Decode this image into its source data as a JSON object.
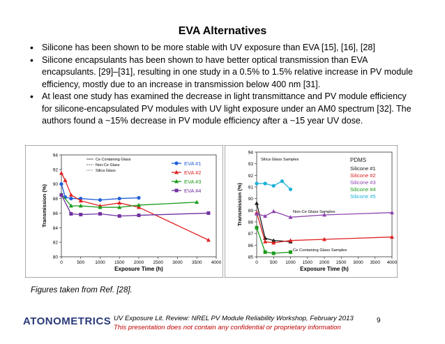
{
  "slide": {
    "title": "EVA Alternatives",
    "bullets": [
      "Silicone has been shown to be more stable with UV exposure than EVA [15], [16], [28]",
      "Silicone encapsulants has been shown to have better optical transmission than EVA encapsulants. [29]–[31], resulting in one study in a 0.5% to 1.5% relative increase in PV module efficiency, mostly due to an increase in transmission below 400 nm [31].",
      "At least one study has examined the decrease in light transmittance and PV module efficiency for silicone-encapsulated PV modules with UV light exposure under an AM0 spectrum [32].  The authors found a ~15% decrease in PV module efficiency after a ~15 year UV dose."
    ],
    "caption": "Figures taken from Ref. [28].",
    "footer_line1": "UV Exposure Lit. Review: NREL PV Module Reliability Workshop, February 2013",
    "footer_line2": "This presentation does not contain any confidential or proprietary information",
    "page_number": "9",
    "logo_text": "ATONOMETRICS"
  },
  "chart_data": [
    {
      "type": "line",
      "xlabel": "Exposure Time (h)",
      "ylabel": "Transmission (%)",
      "xlim": [
        0,
        4000
      ],
      "ylim": [
        80,
        94
      ],
      "xticks": [
        0,
        500,
        1000,
        1500,
        2000,
        2500,
        3000,
        3500,
        4000
      ],
      "yticks": [
        80,
        82,
        84,
        86,
        88,
        90,
        92,
        94
      ],
      "inner_legend": [
        "Ce Containing Glass",
        "Non-Ce Glass",
        "Silica Glass"
      ],
      "series": [
        {
          "name": "EVA #1",
          "color": "#1f5fd8",
          "marker": "circle",
          "x": [
            0,
            100,
            250,
            500,
            1000,
            1500,
            2000
          ],
          "y": [
            90.0,
            88.2,
            88.0,
            88.0,
            87.8,
            88.0,
            88.1
          ]
        },
        {
          "name": "EVA #2",
          "color": "#e02020",
          "marker": "triangle",
          "x": [
            0,
            100,
            250,
            500,
            1000,
            1500,
            2000,
            3800
          ],
          "y": [
            91.5,
            90.5,
            88.5,
            87.7,
            87.0,
            87.4,
            86.8,
            82.3
          ]
        },
        {
          "name": "EVA #3",
          "color": "#1a9a1a",
          "marker": "triangle",
          "x": [
            0,
            250,
            500,
            1000,
            1500,
            2000,
            3500
          ],
          "y": [
            88.6,
            87.0,
            87.0,
            86.8,
            86.8,
            87.1,
            87.5
          ]
        },
        {
          "name": "EVA #4",
          "color": "#7030a0",
          "marker": "square",
          "x": [
            0,
            250,
            500,
            1000,
            1500,
            2000,
            3800
          ],
          "y": [
            88.5,
            85.9,
            85.8,
            85.9,
            85.6,
            85.7,
            86.0
          ]
        }
      ]
    },
    {
      "type": "line",
      "xlabel": "Exposure Time (h)",
      "ylabel": "Transmission (%)",
      "xlim": [
        0,
        4000
      ],
      "ylim": [
        85,
        94
      ],
      "xticks": [
        0,
        500,
        1000,
        1500,
        2000,
        2500,
        3000,
        3500,
        4000
      ],
      "yticks": [
        85,
        86,
        87,
        88,
        89,
        90,
        91,
        92,
        93,
        94
      ],
      "annotations": [
        "Silica Glass Samples",
        "Non-Ce Glass Samples",
        "Ce Containing Glass Samples"
      ],
      "legend_title": "PDMS",
      "series": [
        {
          "name": "Silicone #1",
          "color": "#1a1a1a",
          "marker": "triangle",
          "x": [
            0,
            250,
            500,
            1000
          ],
          "y": [
            89.6,
            86.6,
            86.4,
            86.3
          ]
        },
        {
          "name": "Silicone #2",
          "color": "#e02020",
          "marker": "triangle",
          "x": [
            0,
            250,
            500,
            1000,
            2000,
            4000
          ],
          "y": [
            88.8,
            86.3,
            86.2,
            86.4,
            86.5,
            86.7
          ]
        },
        {
          "name": "Silicone #3",
          "color": "#8e44ad",
          "marker": "triangle",
          "x": [
            0,
            250,
            500,
            1000,
            2000,
            4000
          ],
          "y": [
            88.7,
            88.5,
            88.9,
            88.4,
            88.6,
            88.8
          ]
        },
        {
          "name": "Silicone #4",
          "color": "#1a9a1a",
          "marker": "square",
          "x": [
            0,
            250,
            500,
            1000
          ],
          "y": [
            87.5,
            85.4,
            85.3,
            85.4
          ]
        },
        {
          "name": "Silicone #5",
          "color": "#1ab0d8",
          "marker": "circle",
          "x": [
            0,
            250,
            500,
            750,
            1000
          ],
          "y": [
            91.3,
            91.3,
            91.1,
            91.5,
            90.8
          ]
        }
      ]
    }
  ]
}
